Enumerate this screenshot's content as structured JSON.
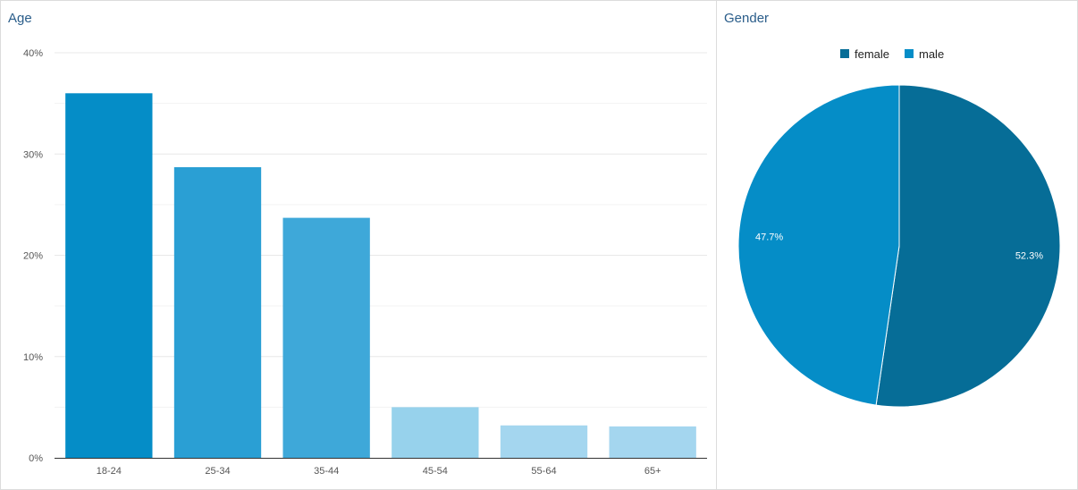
{
  "panels": {
    "age_title": "Age",
    "gender_title": "Gender"
  },
  "chart_data": [
    {
      "type": "bar",
      "title": "Age",
      "categories": [
        "18-24",
        "25-34",
        "35-44",
        "45-54",
        "55-64",
        "65+"
      ],
      "values": [
        36.0,
        28.7,
        23.7,
        5.0,
        3.2,
        3.1
      ],
      "colors": [
        "#058dc7",
        "#2a9fd4",
        "#3ea8d9",
        "#97d2ec",
        "#a4d6ef",
        "#a4d6ef"
      ],
      "ylim": [
        0,
        40
      ],
      "yticks": [
        "0%",
        "10%",
        "20%",
        "30%",
        "40%"
      ],
      "grid": true
    },
    {
      "type": "pie",
      "title": "Gender",
      "legend_position": "top",
      "slices": [
        {
          "label": "female",
          "value": 52.3,
          "display": "52.3%",
          "color": "#066d97"
        },
        {
          "label": "male",
          "value": 47.7,
          "display": "47.7%",
          "color": "#058dc7"
        }
      ]
    }
  ]
}
